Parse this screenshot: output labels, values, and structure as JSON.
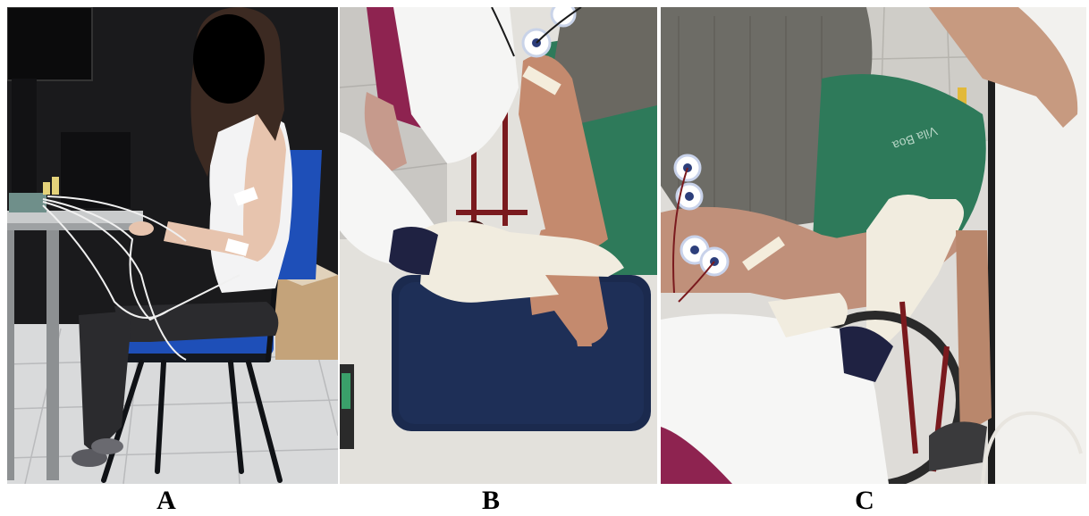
{
  "panels": [
    {
      "id": "A",
      "label": "A"
    },
    {
      "id": "B",
      "label": "B"
    },
    {
      "id": "C",
      "label": "C"
    }
  ],
  "photo_text": {
    "shorts_brand": "Vila Boa"
  },
  "colors": {
    "chair_blue": "#1e4fb8",
    "pillow_navy": "#1b2a4e",
    "shorts_green": "#2e7a5a",
    "gown_maroon": "#8e2350",
    "glove_cream": "#f1ecdf",
    "face_mask": "#000000"
  }
}
